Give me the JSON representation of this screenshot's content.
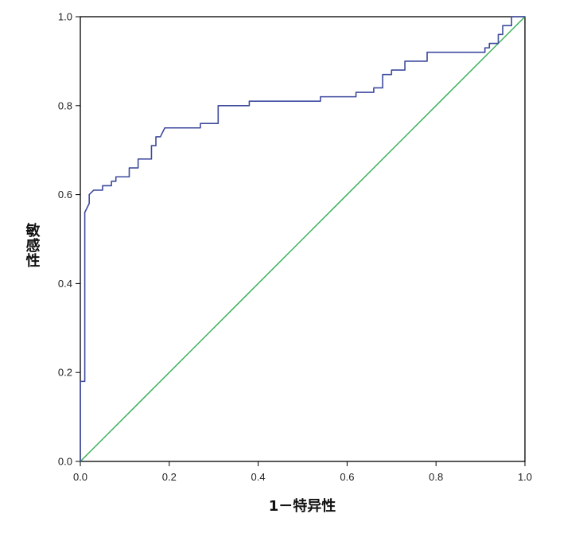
{
  "chart_data": {
    "type": "line",
    "title": "",
    "xlabel": "1－特异性",
    "ylabel": "敏感性",
    "xlim": [
      0.0,
      1.0
    ],
    "ylim": [
      0.0,
      1.0
    ],
    "x_ticks": [
      "0.0",
      "0.2",
      "0.4",
      "0.6",
      "0.8",
      "1.0"
    ],
    "y_ticks": [
      "0.0",
      "0.2",
      "0.4",
      "0.6",
      "0.8",
      "1.0"
    ],
    "grid": false,
    "legend": "none",
    "series": [
      {
        "style": "step",
        "color": "#3d4a9e",
        "points": [
          [
            0.0,
            0.0
          ],
          [
            0.0,
            0.18
          ],
          [
            0.01,
            0.18
          ],
          [
            0.01,
            0.56
          ],
          [
            0.02,
            0.58
          ],
          [
            0.02,
            0.6
          ],
          [
            0.03,
            0.61
          ],
          [
            0.05,
            0.61
          ],
          [
            0.05,
            0.62
          ],
          [
            0.07,
            0.62
          ],
          [
            0.07,
            0.63
          ],
          [
            0.08,
            0.63
          ],
          [
            0.08,
            0.64
          ],
          [
            0.11,
            0.64
          ],
          [
            0.11,
            0.66
          ],
          [
            0.13,
            0.66
          ],
          [
            0.13,
            0.68
          ],
          [
            0.16,
            0.68
          ],
          [
            0.16,
            0.71
          ],
          [
            0.17,
            0.71
          ],
          [
            0.17,
            0.73
          ],
          [
            0.18,
            0.73
          ],
          [
            0.19,
            0.75
          ],
          [
            0.27,
            0.75
          ],
          [
            0.27,
            0.76
          ],
          [
            0.31,
            0.76
          ],
          [
            0.31,
            0.8
          ],
          [
            0.38,
            0.8
          ],
          [
            0.38,
            0.81
          ],
          [
            0.54,
            0.81
          ],
          [
            0.54,
            0.82
          ],
          [
            0.62,
            0.82
          ],
          [
            0.62,
            0.83
          ],
          [
            0.66,
            0.83
          ],
          [
            0.66,
            0.84
          ],
          [
            0.68,
            0.84
          ],
          [
            0.68,
            0.87
          ],
          [
            0.7,
            0.87
          ],
          [
            0.7,
            0.88
          ],
          [
            0.73,
            0.88
          ],
          [
            0.73,
            0.9
          ],
          [
            0.78,
            0.9
          ],
          [
            0.78,
            0.92
          ],
          [
            0.91,
            0.92
          ],
          [
            0.91,
            0.93
          ],
          [
            0.92,
            0.93
          ],
          [
            0.92,
            0.94
          ],
          [
            0.94,
            0.94
          ],
          [
            0.94,
            0.96
          ],
          [
            0.95,
            0.96
          ],
          [
            0.95,
            0.98
          ],
          [
            0.97,
            0.98
          ],
          [
            0.97,
            1.0
          ],
          [
            1.0,
            1.0
          ]
        ]
      },
      {
        "style": "line",
        "color": "#3aad5a",
        "points": [
          [
            0.0,
            0.0
          ],
          [
            1.0,
            1.0
          ]
        ]
      }
    ]
  }
}
